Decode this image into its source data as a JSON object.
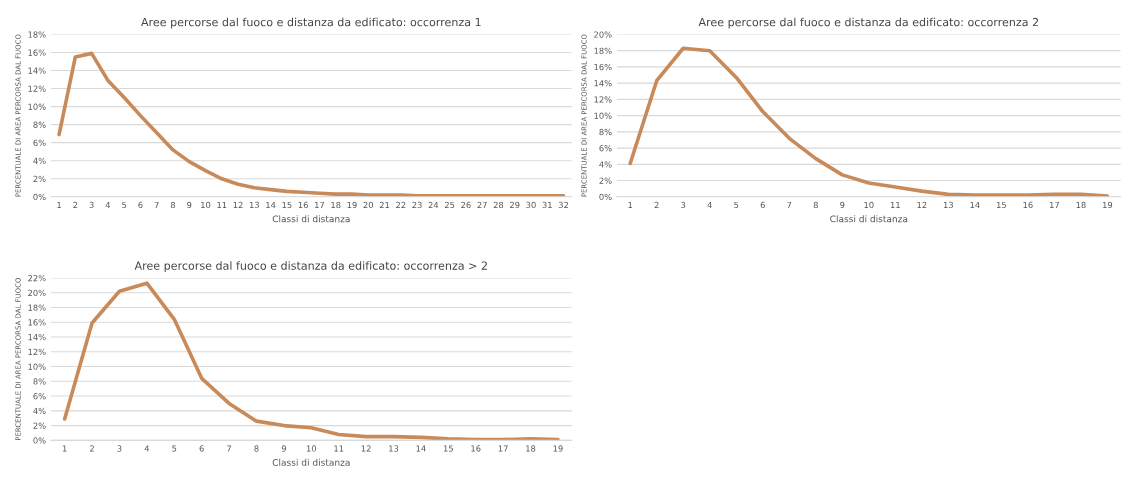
{
  "chart_data": [
    {
      "type": "line",
      "title": "Aree percorse dal fuoco e distanza da edificato: occorrenza 1",
      "xlabel": "Classi di distanza",
      "ylabel": "PERCENTUALE DI AREA PERCORSA DAL FUOCO",
      "categories": [
        "1",
        "2",
        "3",
        "4",
        "5",
        "6",
        "7",
        "8",
        "9",
        "10",
        "11",
        "12",
        "13",
        "14",
        "15",
        "16",
        "17",
        "18",
        "19",
        "20",
        "21",
        "22",
        "23",
        "24",
        "25",
        "26",
        "27",
        "28",
        "29",
        "30",
        "31",
        "32"
      ],
      "series": [
        {
          "color": "#c98a5a",
          "values": [
            6.9,
            15.5,
            15.9,
            12.9,
            11.0,
            9.0,
            7.1,
            5.2,
            3.9,
            2.9,
            2.0,
            1.4,
            1.0,
            0.8,
            0.6,
            0.5,
            0.4,
            0.3,
            0.3,
            0.2,
            0.2,
            0.2,
            0.1,
            0.1,
            0.1,
            0.1,
            0.1,
            0.1,
            0.1,
            0.1,
            0.1,
            0.1
          ]
        }
      ],
      "ylim": [
        0,
        18
      ],
      "yticks": [
        {
          "value": 0,
          "label": "0%"
        },
        {
          "value": 2,
          "label": "2%"
        },
        {
          "value": 4,
          "label": "4%"
        },
        {
          "value": 6,
          "label": "6%"
        },
        {
          "value": 8,
          "label": "8%"
        },
        {
          "value": 10,
          "label": "10%"
        },
        {
          "value": 12,
          "label": "12%"
        },
        {
          "value": 14,
          "label": "14%"
        },
        {
          "value": 16,
          "label": "16%"
        },
        {
          "value": 18,
          "label": "18%"
        }
      ],
      "grid": "y"
    },
    {
      "type": "line",
      "title": "Aree percorse dal fuoco e distanza da edificato: occorrenza 2",
      "xlabel": "Classi di distanza",
      "ylabel": "PERCENTUALE DI AREA PERCORSA DAL FUOCO",
      "categories": [
        "1",
        "2",
        "3",
        "4",
        "5",
        "6",
        "7",
        "8",
        "9",
        "10",
        "11",
        "12",
        "13",
        "14",
        "15",
        "16",
        "17",
        "18",
        "19"
      ],
      "series": [
        {
          "color": "#c98a5a",
          "values": [
            4.1,
            14.3,
            18.3,
            18.0,
            14.7,
            10.5,
            7.2,
            4.7,
            2.7,
            1.7,
            1.2,
            0.7,
            0.3,
            0.2,
            0.2,
            0.2,
            0.3,
            0.3,
            0.1
          ]
        }
      ],
      "ylim": [
        0,
        20
      ],
      "yticks": [
        {
          "value": 0,
          "label": "0%"
        },
        {
          "value": 2,
          "label": "2%"
        },
        {
          "value": 4,
          "label": "4%"
        },
        {
          "value": 6,
          "label": "6%"
        },
        {
          "value": 8,
          "label": "8%"
        },
        {
          "value": 10,
          "label": "10%"
        },
        {
          "value": 12,
          "label": "12%"
        },
        {
          "value": 14,
          "label": "14%"
        },
        {
          "value": 16,
          "label": "16%"
        },
        {
          "value": 18,
          "label": "18%"
        },
        {
          "value": 20,
          "label": "20%"
        }
      ],
      "grid": "y"
    },
    {
      "type": "line",
      "title": "Aree percorse dal fuoco e distanza da edificato: occorrenza > 2",
      "xlabel": "Classi di distanza",
      "ylabel": "PERCENTUALE DI AREA PERCORSA DAL FUOCO",
      "categories": [
        "1",
        "2",
        "3",
        "4",
        "5",
        "6",
        "7",
        "8",
        "9",
        "10",
        "11",
        "12",
        "13",
        "14",
        "15",
        "16",
        "17",
        "18",
        "19"
      ],
      "series": [
        {
          "color": "#c98a5a",
          "values": [
            2.9,
            15.9,
            20.2,
            21.3,
            16.4,
            8.4,
            5.0,
            2.6,
            2.0,
            1.7,
            0.8,
            0.5,
            0.5,
            0.4,
            0.2,
            0.1,
            0.1,
            0.2,
            0.1
          ]
        }
      ],
      "ylim": [
        0,
        22
      ],
      "yticks": [
        {
          "value": 0,
          "label": "0%"
        },
        {
          "value": 2,
          "label": "2%"
        },
        {
          "value": 4,
          "label": "4%"
        },
        {
          "value": 6,
          "label": "6%"
        },
        {
          "value": 8,
          "label": "8%"
        },
        {
          "value": 10,
          "label": "10%"
        },
        {
          "value": 12,
          "label": "12%"
        },
        {
          "value": 14,
          "label": "14%"
        },
        {
          "value": 16,
          "label": "16%"
        },
        {
          "value": 18,
          "label": "18%"
        },
        {
          "value": 20,
          "label": "20%"
        },
        {
          "value": 22,
          "label": "22%"
        }
      ],
      "grid": "y"
    }
  ]
}
